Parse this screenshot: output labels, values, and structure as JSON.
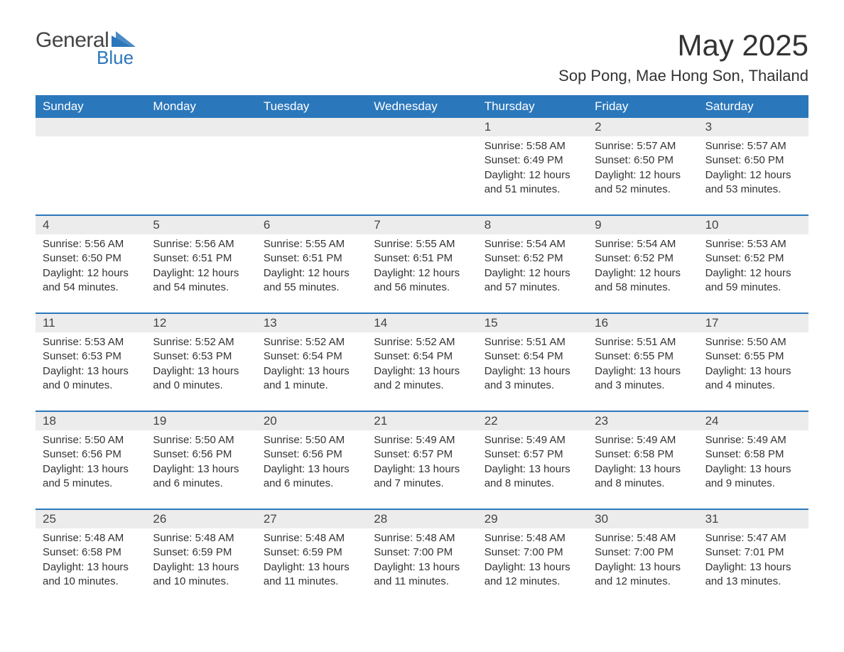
{
  "logo": {
    "general_text": "General",
    "blue_text": "Blue",
    "general_color": "#444444",
    "blue_color": "#2b77bb",
    "shape_color": "#2b77bb"
  },
  "title": "May 2025",
  "location": "Sop Pong, Mae Hong Son, Thailand",
  "colors": {
    "header_bg": "#2b77bb",
    "header_text": "#ffffff",
    "daynum_bg": "#ececec",
    "row_border": "#2b77bb",
    "body_text": "#333333",
    "page_bg": "#ffffff"
  },
  "fonts": {
    "family": "Arial, Helvetica, sans-serif",
    "title_size_pt": 32,
    "location_size_pt": 16,
    "dow_size_pt": 13,
    "daynum_size_pt": 13,
    "body_size_pt": 11
  },
  "days_of_week": [
    "Sunday",
    "Monday",
    "Tuesday",
    "Wednesday",
    "Thursday",
    "Friday",
    "Saturday"
  ],
  "labels": {
    "sunrise": "Sunrise:",
    "sunset": "Sunset:",
    "daylight": "Daylight:"
  },
  "weeks": [
    [
      null,
      null,
      null,
      null,
      {
        "day": "1",
        "sunrise": "5:58 AM",
        "sunset": "6:49 PM",
        "daylight": "12 hours and 51 minutes."
      },
      {
        "day": "2",
        "sunrise": "5:57 AM",
        "sunset": "6:50 PM",
        "daylight": "12 hours and 52 minutes."
      },
      {
        "day": "3",
        "sunrise": "5:57 AM",
        "sunset": "6:50 PM",
        "daylight": "12 hours and 53 minutes."
      }
    ],
    [
      {
        "day": "4",
        "sunrise": "5:56 AM",
        "sunset": "6:50 PM",
        "daylight": "12 hours and 54 minutes."
      },
      {
        "day": "5",
        "sunrise": "5:56 AM",
        "sunset": "6:51 PM",
        "daylight": "12 hours and 54 minutes."
      },
      {
        "day": "6",
        "sunrise": "5:55 AM",
        "sunset": "6:51 PM",
        "daylight": "12 hours and 55 minutes."
      },
      {
        "day": "7",
        "sunrise": "5:55 AM",
        "sunset": "6:51 PM",
        "daylight": "12 hours and 56 minutes."
      },
      {
        "day": "8",
        "sunrise": "5:54 AM",
        "sunset": "6:52 PM",
        "daylight": "12 hours and 57 minutes."
      },
      {
        "day": "9",
        "sunrise": "5:54 AM",
        "sunset": "6:52 PM",
        "daylight": "12 hours and 58 minutes."
      },
      {
        "day": "10",
        "sunrise": "5:53 AM",
        "sunset": "6:52 PM",
        "daylight": "12 hours and 59 minutes."
      }
    ],
    [
      {
        "day": "11",
        "sunrise": "5:53 AM",
        "sunset": "6:53 PM",
        "daylight": "13 hours and 0 minutes."
      },
      {
        "day": "12",
        "sunrise": "5:52 AM",
        "sunset": "6:53 PM",
        "daylight": "13 hours and 0 minutes."
      },
      {
        "day": "13",
        "sunrise": "5:52 AM",
        "sunset": "6:54 PM",
        "daylight": "13 hours and 1 minute."
      },
      {
        "day": "14",
        "sunrise": "5:52 AM",
        "sunset": "6:54 PM",
        "daylight": "13 hours and 2 minutes."
      },
      {
        "day": "15",
        "sunrise": "5:51 AM",
        "sunset": "6:54 PM",
        "daylight": "13 hours and 3 minutes."
      },
      {
        "day": "16",
        "sunrise": "5:51 AM",
        "sunset": "6:55 PM",
        "daylight": "13 hours and 3 minutes."
      },
      {
        "day": "17",
        "sunrise": "5:50 AM",
        "sunset": "6:55 PM",
        "daylight": "13 hours and 4 minutes."
      }
    ],
    [
      {
        "day": "18",
        "sunrise": "5:50 AM",
        "sunset": "6:56 PM",
        "daylight": "13 hours and 5 minutes."
      },
      {
        "day": "19",
        "sunrise": "5:50 AM",
        "sunset": "6:56 PM",
        "daylight": "13 hours and 6 minutes."
      },
      {
        "day": "20",
        "sunrise": "5:50 AM",
        "sunset": "6:56 PM",
        "daylight": "13 hours and 6 minutes."
      },
      {
        "day": "21",
        "sunrise": "5:49 AM",
        "sunset": "6:57 PM",
        "daylight": "13 hours and 7 minutes."
      },
      {
        "day": "22",
        "sunrise": "5:49 AM",
        "sunset": "6:57 PM",
        "daylight": "13 hours and 8 minutes."
      },
      {
        "day": "23",
        "sunrise": "5:49 AM",
        "sunset": "6:58 PM",
        "daylight": "13 hours and 8 minutes."
      },
      {
        "day": "24",
        "sunrise": "5:49 AM",
        "sunset": "6:58 PM",
        "daylight": "13 hours and 9 minutes."
      }
    ],
    [
      {
        "day": "25",
        "sunrise": "5:48 AM",
        "sunset": "6:58 PM",
        "daylight": "13 hours and 10 minutes."
      },
      {
        "day": "26",
        "sunrise": "5:48 AM",
        "sunset": "6:59 PM",
        "daylight": "13 hours and 10 minutes."
      },
      {
        "day": "27",
        "sunrise": "5:48 AM",
        "sunset": "6:59 PM",
        "daylight": "13 hours and 11 minutes."
      },
      {
        "day": "28",
        "sunrise": "5:48 AM",
        "sunset": "7:00 PM",
        "daylight": "13 hours and 11 minutes."
      },
      {
        "day": "29",
        "sunrise": "5:48 AM",
        "sunset": "7:00 PM",
        "daylight": "13 hours and 12 minutes."
      },
      {
        "day": "30",
        "sunrise": "5:48 AM",
        "sunset": "7:00 PM",
        "daylight": "13 hours and 12 minutes."
      },
      {
        "day": "31",
        "sunrise": "5:47 AM",
        "sunset": "7:01 PM",
        "daylight": "13 hours and 13 minutes."
      }
    ]
  ]
}
